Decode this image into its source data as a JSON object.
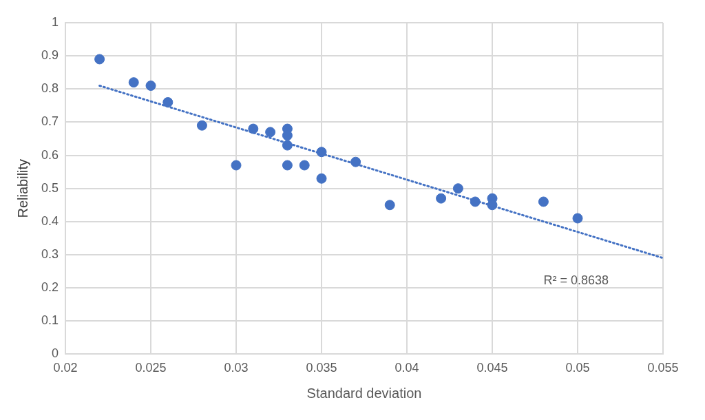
{
  "chart_data": {
    "type": "scatter",
    "xlabel": "Standard deviation",
    "ylabel": "Reliability",
    "xlim": [
      0.02,
      0.055
    ],
    "xticks": [
      0.02,
      0.025,
      0.03,
      0.035,
      0.04,
      0.045,
      0.05,
      0.055
    ],
    "ylim": [
      0,
      1
    ],
    "yticks": [
      0,
      0.1,
      0.2,
      0.3,
      0.4,
      0.5,
      0.6,
      0.7,
      0.8,
      0.9,
      1
    ],
    "grid": true,
    "marker": "circle",
    "annotations": [
      "R² = 0.8638"
    ],
    "series": [
      {
        "type": "scatter",
        "color": "#4472c4",
        "x": [
          0.022,
          0.024,
          0.025,
          0.026,
          0.028,
          0.03,
          0.031,
          0.032,
          0.033,
          0.033,
          0.033,
          0.033,
          0.034,
          0.035,
          0.035,
          0.037,
          0.039,
          0.042,
          0.043,
          0.044,
          0.045,
          0.045,
          0.048,
          0.05
        ],
        "values": [
          0.89,
          0.82,
          0.81,
          0.76,
          0.69,
          0.57,
          0.68,
          0.67,
          0.68,
          0.66,
          0.63,
          0.57,
          0.57,
          0.61,
          0.53,
          0.58,
          0.45,
          0.47,
          0.5,
          0.46,
          0.47,
          0.45,
          0.46,
          0.41
        ]
      },
      {
        "type": "line",
        "color": "#4472c4",
        "line_style": "dotted",
        "marker": "none",
        "x": [
          0.022,
          0.055
        ],
        "values": [
          0.81,
          0.29
        ]
      }
    ]
  }
}
